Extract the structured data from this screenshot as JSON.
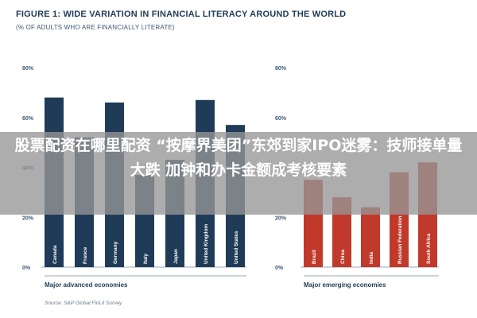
{
  "chart_data": {
    "title": "FIGURE 1: WIDE VARIATION IN FINANCIAL LITERACY AROUND THE WORLD",
    "subtitle": "(% OF ADULTS WHO ARE FINANCIALLY LITERATE)",
    "source": "Source: S&P Global FinLit Survey",
    "panels": [
      {
        "type": "bar",
        "group_label": "Major advanced economies",
        "categories": [
          "Canada",
          "France",
          "Germany",
          "Italy",
          "Japan",
          "United Kingdom",
          "United States"
        ],
        "values": [
          68,
          52,
          66,
          37,
          43,
          67,
          57
        ],
        "ylim": [
          0,
          80
        ],
        "yticks": [
          "0%",
          "20%",
          "40%",
          "60%",
          "80%"
        ],
        "color": "#1f3b57"
      },
      {
        "type": "bar",
        "group_label": "Major emerging economies",
        "categories": [
          "Brazil",
          "China",
          "India",
          "Russian Federation",
          "South Africa"
        ],
        "values": [
          35,
          28,
          24,
          38,
          42
        ],
        "ylim": [
          0,
          80
        ],
        "yticks": [
          "0%",
          "20%",
          "40%",
          "60%",
          "80%"
        ],
        "color": "#c0392b"
      }
    ]
  },
  "overlay": {
    "headline": "股票配资在哪里配资 “按摩界美团”东郊到家IPO迷雾：技师接单量大跌 加钟和办卡金额成考核要素"
  }
}
